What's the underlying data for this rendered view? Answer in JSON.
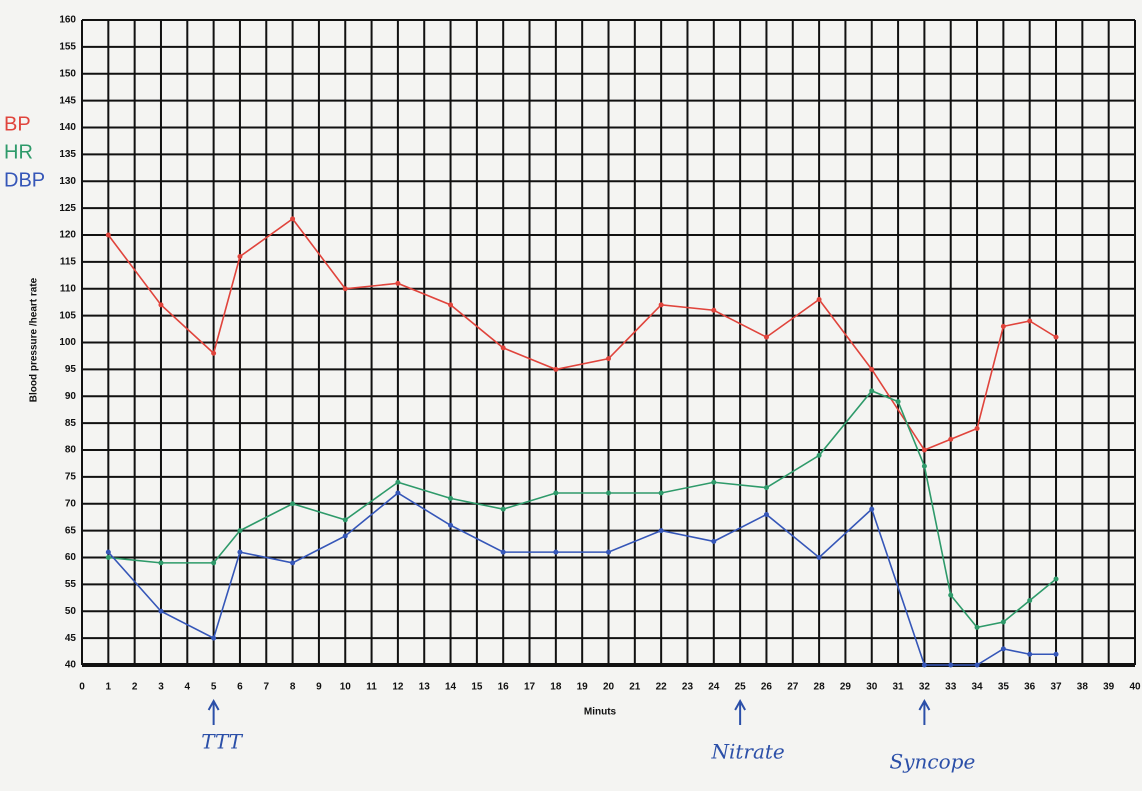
{
  "chart_data": {
    "type": "line",
    "y_label": "Blood pressure /heart rate",
    "x_label": "Minuts",
    "series": [
      {
        "name": "BP",
        "color": "#e0443c",
        "x": [
          1,
          3,
          5,
          6,
          8,
          10,
          12,
          14,
          16,
          18,
          20,
          22,
          24,
          26,
          28,
          30,
          32,
          33,
          34,
          35,
          36,
          37
        ],
        "values": [
          120,
          107,
          98,
          116,
          123,
          110,
          111,
          107,
          99,
          95,
          97,
          107,
          106,
          101,
          108,
          95,
          80,
          82,
          84,
          103,
          104,
          101
        ]
      },
      {
        "name": "HR",
        "color": "#2e9a6a",
        "x": [
          1,
          3,
          5,
          6,
          8,
          10,
          12,
          14,
          16,
          18,
          20,
          22,
          24,
          26,
          28,
          30,
          31,
          32,
          33,
          34,
          35,
          36,
          37
        ],
        "values": [
          60,
          59,
          59,
          65,
          70,
          67,
          74,
          71,
          69,
          72,
          72,
          72,
          74,
          73,
          79,
          91,
          89,
          77,
          53,
          47,
          48,
          52,
          56
        ]
      },
      {
        "name": "DBP",
        "color": "#3556b8",
        "x": [
          1,
          3,
          5,
          6,
          8,
          10,
          12,
          14,
          16,
          18,
          20,
          22,
          24,
          26,
          28,
          30,
          32,
          33,
          34,
          35,
          36,
          37
        ],
        "values": [
          61,
          50,
          45,
          61,
          59,
          64,
          72,
          66,
          61,
          61,
          61,
          65,
          63,
          68,
          60,
          69,
          40,
          40,
          40,
          43,
          42,
          42
        ]
      }
    ],
    "xlim": [
      0,
      40
    ],
    "xticks": [
      0,
      1,
      2,
      3,
      4,
      5,
      6,
      7,
      8,
      9,
      10,
      11,
      12,
      13,
      14,
      15,
      16,
      17,
      18,
      19,
      20,
      21,
      22,
      23,
      24,
      25,
      26,
      27,
      28,
      29,
      30,
      31,
      32,
      33,
      34,
      35,
      36,
      37,
      38,
      39,
      40
    ],
    "ylim": [
      40,
      160
    ],
    "yticks": [
      40,
      45,
      50,
      55,
      60,
      65,
      70,
      75,
      80,
      85,
      90,
      95,
      100,
      105,
      110,
      115,
      120,
      125,
      130,
      135,
      140,
      145,
      150,
      155,
      160
    ],
    "grid": true,
    "annotations": [
      {
        "text": "TTT",
        "x": 5
      },
      {
        "text": "Nitrate",
        "x": 25
      },
      {
        "text": "Syncope",
        "x": 32
      }
    ]
  }
}
